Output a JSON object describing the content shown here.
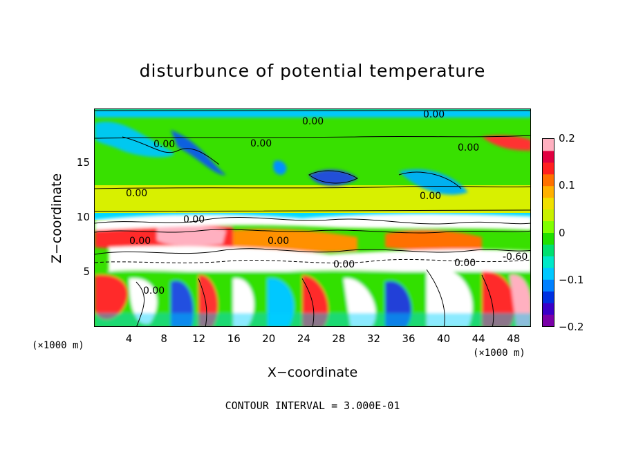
{
  "chart_data": {
    "type": "heatmap",
    "title": "disturbunce of potential temperature",
    "xlabel": "X−coordinate",
    "ylabel": "Z−coordinate",
    "x_unit": "(×1000 m)",
    "y_unit": "(×1000 m)",
    "xlim": [
      0,
      50
    ],
    "ylim": [
      0,
      20
    ],
    "x_ticks": [
      "4",
      "8",
      "12",
      "16",
      "20",
      "24",
      "28",
      "32",
      "36",
      "40",
      "44",
      "48"
    ],
    "y_ticks": [
      "5",
      "10",
      "15"
    ],
    "colorbar": {
      "range": [
        -0.2,
        0.2
      ],
      "tick_labels": [
        "0.2",
        "0.1",
        "0",
        "−0.1",
        "−0.2"
      ],
      "tick_values": [
        0.2,
        0.1,
        0,
        -0.1,
        -0.2
      ],
      "colors": [
        "#7a00a8",
        "#3a00c8",
        "#0030e0",
        "#0080ff",
        "#00c8ff",
        "#00e8c8",
        "#00e070",
        "#20e000",
        "#80ff00",
        "#c8f000",
        "#f0e000",
        "#ffb000",
        "#ff7000",
        "#ff2020",
        "#e00040",
        "#ffb0c0"
      ]
    },
    "contour_labels": [
      "0.00",
      "0.00",
      "0.00",
      "0.00",
      "0.00",
      "0.00",
      "0.00",
      "0.00",
      "0.00",
      "0.00",
      "0.00",
      "0.00",
      "-0.60",
      "0.00"
    ],
    "footer": "CONTOUR INTERVAL = 3.000E-01"
  }
}
